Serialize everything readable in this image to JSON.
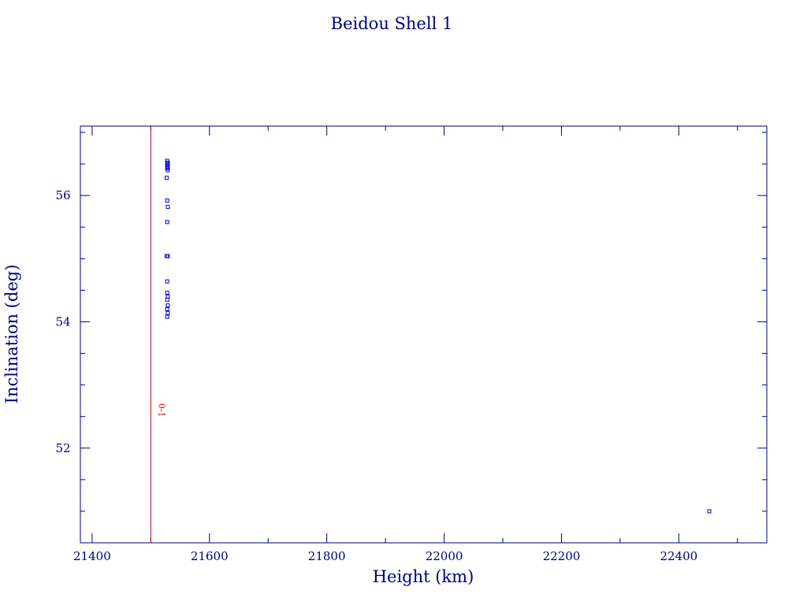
{
  "chart_data": {
    "type": "scatter",
    "title": "Beidou Shell 1",
    "xlabel": "Height (km)",
    "ylabel": "Inclination (deg)",
    "xlim": [
      21380,
      22550
    ],
    "ylim": [
      50.5,
      57.1
    ],
    "xticks": [
      21400,
      21600,
      21800,
      22000,
      22200,
      22400
    ],
    "yticks": [
      52,
      54,
      56
    ],
    "grid": false,
    "colors": {
      "axes": "#000080",
      "text": "#000080",
      "points": "#0000cc",
      "reference_line": "#cc0000"
    },
    "reference_line": {
      "x": 21500,
      "label": "0-1"
    },
    "series": [
      {
        "points": [
          [
            21528,
            56.55
          ],
          [
            21529,
            56.52
          ],
          [
            21528,
            56.49
          ],
          [
            21529,
            56.46
          ],
          [
            21528,
            56.43
          ],
          [
            21529,
            56.4
          ],
          [
            21527,
            56.28
          ],
          [
            21528,
            55.92
          ],
          [
            21529,
            55.82
          ],
          [
            21528,
            55.58
          ],
          [
            21527,
            55.04
          ],
          [
            21529,
            55.04
          ],
          [
            21528,
            54.64
          ],
          [
            21528,
            54.46
          ],
          [
            21529,
            54.4
          ],
          [
            21528,
            54.35
          ],
          [
            21529,
            54.26
          ],
          [
            21528,
            54.2
          ],
          [
            21529,
            54.14
          ],
          [
            21528,
            54.08
          ],
          [
            22452,
            51.0
          ]
        ]
      }
    ]
  }
}
